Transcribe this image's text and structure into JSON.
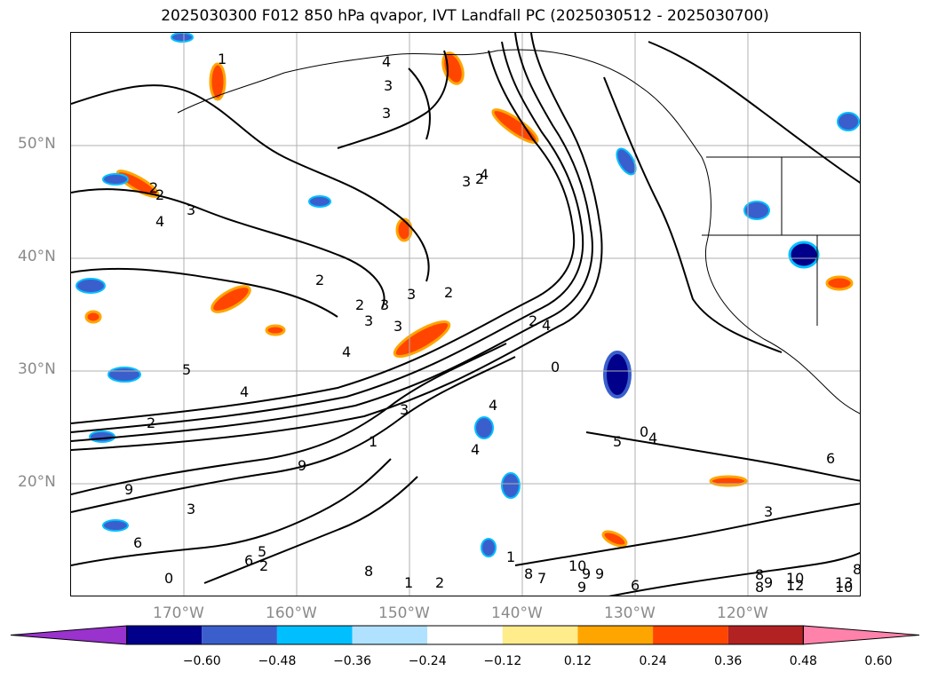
{
  "title": "2025030300 F012 850 hPa qvapor, IVT Landfall PC (2025030512 - 2025030700)",
  "lat_labels": [
    "50°N",
    "40°N",
    "30°N",
    "20°N"
  ],
  "lon_labels": [
    "170°W",
    "160°W",
    "150°W",
    "140°W",
    "130°W",
    "120°W"
  ],
  "colorbar": {
    "ticks": [
      "−0.60",
      "−0.48",
      "−0.36",
      "−0.24",
      "−0.12",
      "0.12",
      "0.24",
      "0.36",
      "0.48",
      "0.60"
    ],
    "colors": [
      "#9a32cd",
      "#00008b",
      "#3a5fcd",
      "#00bfff",
      "#b0e2ff",
      "#ffffff",
      "#ffec8b",
      "#ffa500",
      "#ff4500",
      "#b22222",
      "#ff82ab"
    ]
  },
  "contour_labels": [
    "1",
    "2",
    "4",
    "3",
    "2",
    "3",
    "4",
    "2",
    "3",
    "4",
    "2",
    "3",
    "3",
    "2",
    "3",
    "2",
    "3",
    "4",
    "5",
    "4",
    "2",
    "2",
    "0",
    "3",
    "4",
    "3",
    "4",
    "1",
    "4",
    "3",
    "6",
    "9",
    "9",
    "0",
    "4",
    "5",
    "6",
    "3",
    "5",
    "6",
    "2",
    "0",
    "8",
    "1",
    "2",
    "1",
    "10",
    "9",
    "9",
    "8",
    "7",
    "9",
    "6",
    "8",
    "9",
    "10",
    "10",
    "8",
    "12",
    "13",
    "8"
  ]
}
